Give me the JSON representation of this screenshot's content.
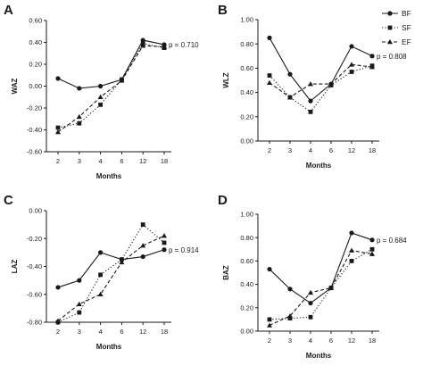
{
  "legend": [
    {
      "series": "BF",
      "label": "BF",
      "dash": "solid",
      "marker": "circle"
    },
    {
      "series": "SF",
      "label": "SF",
      "dash": "dotted",
      "marker": "square"
    },
    {
      "series": "EF",
      "label": "EF",
      "dash": "dashed",
      "marker": "triangle"
    }
  ],
  "chart_data": [
    {
      "type": "line",
      "panel": "A",
      "ylabel": "WAZ",
      "xlabel": "Months",
      "categories": [
        "2",
        "3",
        "4",
        "6",
        "12",
        "18"
      ],
      "ylim": [
        -0.6,
        0.6
      ],
      "yticks": [
        -0.6,
        -0.4,
        -0.2,
        0.0,
        0.2,
        0.4,
        0.6
      ],
      "ytick_labels": [
        "-0.60",
        "-0.40",
        "-0.20",
        "0.00",
        "0.20",
        "0.40",
        "0.60"
      ],
      "annotation": "p = 0.710",
      "series": [
        {
          "name": "BF",
          "values": [
            0.07,
            -0.02,
            0.0,
            0.06,
            0.42,
            0.38
          ]
        },
        {
          "name": "SF",
          "values": [
            -0.38,
            -0.34,
            -0.17,
            0.06,
            0.39,
            0.35
          ]
        },
        {
          "name": "EF",
          "values": [
            -0.42,
            -0.28,
            -0.1,
            0.05,
            0.37,
            0.36
          ]
        }
      ]
    },
    {
      "type": "line",
      "panel": "B",
      "ylabel": "WLZ",
      "xlabel": "Months",
      "categories": [
        "2",
        "3",
        "4",
        "6",
        "12",
        "18"
      ],
      "ylim": [
        0.0,
        1.0
      ],
      "yticks": [
        0.0,
        0.2,
        0.4,
        0.6,
        0.8,
        1.0
      ],
      "ytick_labels": [
        "0.00",
        "0.20",
        "0.40",
        "0.60",
        "0.80",
        "1.00"
      ],
      "annotation": "p = 0.808",
      "series": [
        {
          "name": "BF",
          "values": [
            0.85,
            0.55,
            0.33,
            0.47,
            0.78,
            0.7
          ]
        },
        {
          "name": "SF",
          "values": [
            0.54,
            0.36,
            0.24,
            0.46,
            0.57,
            0.62
          ]
        },
        {
          "name": "EF",
          "values": [
            0.48,
            0.36,
            0.47,
            0.47,
            0.63,
            0.61
          ]
        }
      ]
    },
    {
      "type": "line",
      "panel": "C",
      "ylabel": "LAZ",
      "xlabel": "Months",
      "categories": [
        "2",
        "3",
        "4",
        "6",
        "12",
        "18"
      ],
      "ylim": [
        -0.8,
        0.0
      ],
      "yticks": [
        -0.8,
        -0.6,
        -0.4,
        -0.2,
        0.0
      ],
      "ytick_labels": [
        "-0.80",
        "-0.60",
        "-0.40",
        "-0.20",
        "0.00"
      ],
      "annotation": "p = 0.914",
      "series": [
        {
          "name": "BF",
          "values": [
            -0.55,
            -0.5,
            -0.3,
            -0.35,
            -0.33,
            -0.28
          ]
        },
        {
          "name": "SF",
          "values": [
            -0.8,
            -0.73,
            -0.46,
            -0.35,
            -0.1,
            -0.23
          ]
        },
        {
          "name": "EF",
          "values": [
            -0.79,
            -0.67,
            -0.6,
            -0.37,
            -0.25,
            -0.18
          ]
        }
      ]
    },
    {
      "type": "line",
      "panel": "D",
      "ylabel": "BAZ",
      "xlabel": "Months",
      "categories": [
        "2",
        "3",
        "4",
        "6",
        "12",
        "18"
      ],
      "ylim": [
        0.0,
        1.0
      ],
      "yticks": [
        0.0,
        0.2,
        0.4,
        0.6,
        0.8,
        1.0
      ],
      "ytick_labels": [
        "0.00",
        "0.20",
        "0.40",
        "0.60",
        "0.80",
        "1.00"
      ],
      "annotation": "p = 0.684",
      "series": [
        {
          "name": "BF",
          "values": [
            0.53,
            0.36,
            0.24,
            0.37,
            0.84,
            0.78
          ]
        },
        {
          "name": "SF",
          "values": [
            0.1,
            0.11,
            0.12,
            0.37,
            0.6,
            0.7
          ]
        },
        {
          "name": "EF",
          "values": [
            0.05,
            0.13,
            0.33,
            0.37,
            0.69,
            0.66
          ]
        }
      ]
    }
  ]
}
